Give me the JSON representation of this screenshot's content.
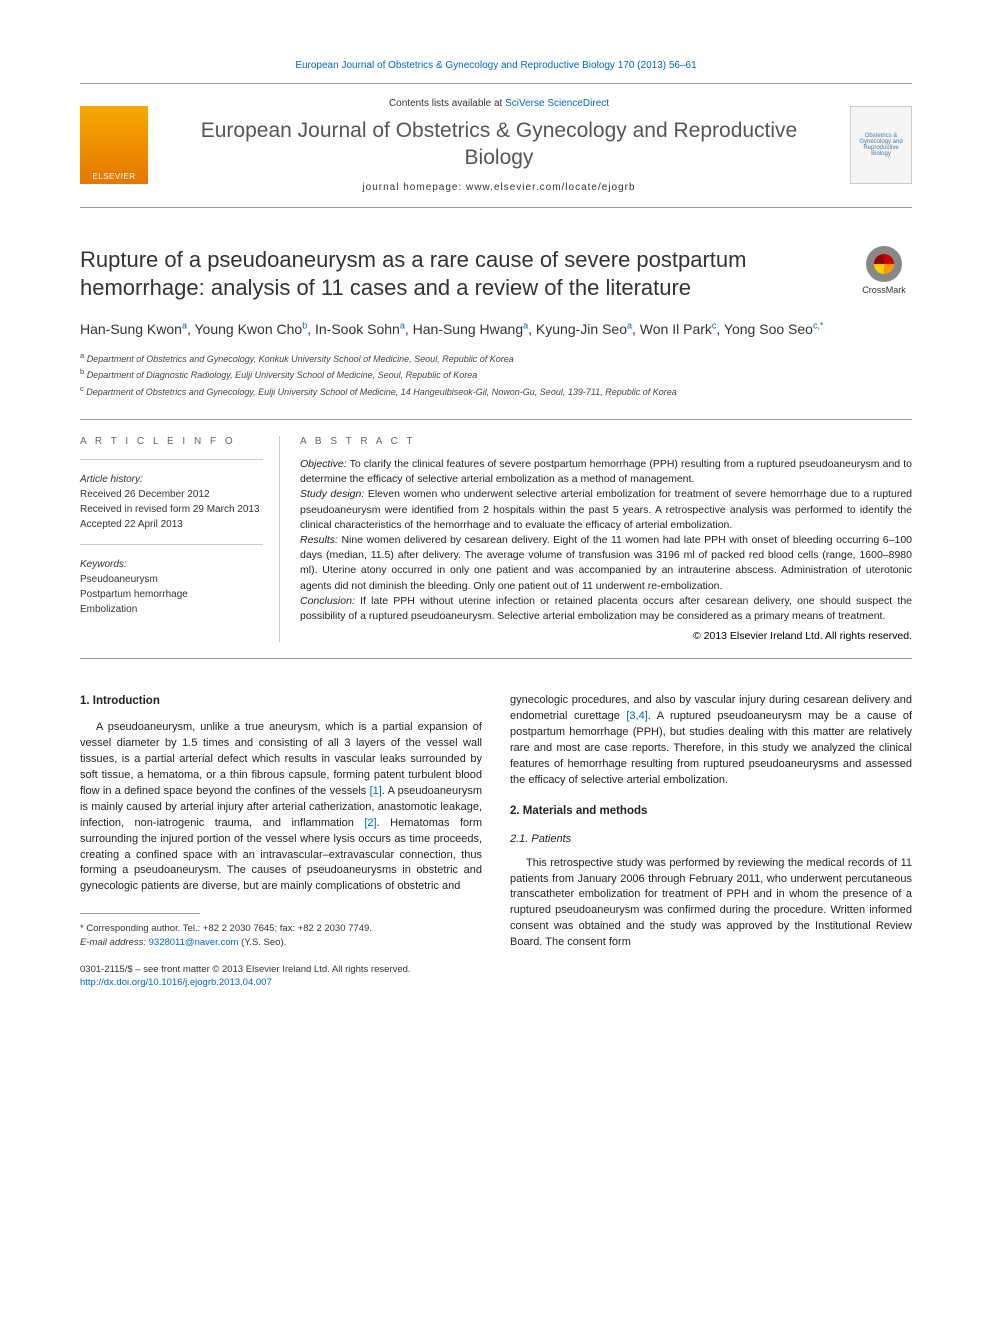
{
  "header": {
    "citation_link": "European Journal of Obstetrics & Gynecology and Reproductive Biology 170 (2013) 56–61",
    "contents_prefix": "Contents lists available at ",
    "contents_link": "SciVerse ScienceDirect",
    "journal_title": "European Journal of Obstetrics & Gynecology and Reproductive Biology",
    "homepage_label": "journal homepage: www.elsevier.com/locate/ejogrb",
    "elsevier": "ELSEVIER",
    "cover_text": "Obstetrics & Gynecology and Reproductive Biology"
  },
  "crossmark": "CrossMark",
  "article": {
    "title": "Rupture of a pseudoaneurysm as a rare cause of severe postpartum hemorrhage: analysis of 11 cases and a review of the literature",
    "authors_html": "Han-Sung Kwon<sup>a</sup>, Young Kwon Cho<sup>b</sup>, In-Sook Sohn<sup>a</sup>, Han-Sung Hwang<sup>a</sup>, Kyung-Jin Seo<sup>a</sup>, Won Il Park<sup>c</sup>, Yong Soo Seo<sup>c,*</sup>",
    "affiliations": {
      "a": "Department of Obstetrics and Gynecology, Konkuk University School of Medicine, Seoul, Republic of Korea",
      "b": "Department of Diagnostic Radiology, Eulji University School of Medicine, Seoul, Republic of Korea",
      "c": "Department of Obstetrics and Gynecology, Eulji University School of Medicine, 14 Hangeulbiseok-Gil, Nowon-Gu, Seoul, 139-711, Republic of Korea"
    }
  },
  "info": {
    "heading": "A R T I C L E   I N F O",
    "history_label": "Article history:",
    "received": "Received 26 December 2012",
    "revised": "Received in revised form 29 March 2013",
    "accepted": "Accepted 22 April 2013",
    "keywords_label": "Keywords:",
    "keywords": [
      "Pseudoaneurysm",
      "Postpartum hemorrhage",
      "Embolization"
    ]
  },
  "abstract": {
    "heading": "A B S T R A C T",
    "objective": "To clarify the clinical features of severe postpartum hemorrhage (PPH) resulting from a ruptured pseudoaneurysm and to determine the efficacy of selective arterial embolization as a method of management.",
    "study_design": "Eleven women who underwent selective arterial embolization for treatment of severe hemorrhage due to a ruptured pseudoaneurysm were identified from 2 hospitals within the past 5 years. A retrospective analysis was performed to identify the clinical characteristics of the hemorrhage and to evaluate the efficacy of arterial embolization.",
    "results": "Nine women delivered by cesarean delivery. Eight of the 11 women had late PPH with onset of bleeding occurring 6–100 days (median, 11.5) after delivery. The average volume of transfusion was 3196 ml of packed red blood cells (range, 1600–8980 ml). Uterine atony occurred in only one patient and was accompanied by an intrauterine abscess. Administration of uterotonic agents did not diminish the bleeding. Only one patient out of 11 underwent re-embolization.",
    "conclusion": "If late PPH without uterine infection or retained placenta occurs after cesarean delivery, one should suspect the possibility of a ruptured pseudoaneurysm. Selective arterial embolization may be considered as a primary means of treatment.",
    "copyright": "© 2013 Elsevier Ireland Ltd. All rights reserved."
  },
  "body": {
    "intro_heading": "1. Introduction",
    "intro_para": "A pseudoaneurysm, unlike a true aneurysm, which is a partial expansion of vessel diameter by 1.5 times and consisting of all 3 layers of the vessel wall tissues, is a partial arterial defect which results in vascular leaks surrounded by soft tissue, a hematoma, or a thin fibrous capsule, forming patent turbulent blood flow in a defined space beyond the confines of the vessels [1]. A pseudoaneurysm is mainly caused by arterial injury after arterial catherization, anastomotic leakage, infection, non-iatrogenic trauma, and inflammation [2]. Hematomas form surrounding the injured portion of the vessel where lysis occurs as time proceeds, creating a confined space with an intravascular–extravascular connection, thus forming a pseudoaneurysm. The causes of pseudoaneurysms in obstetric and gynecologic patients are diverse, but are mainly complications of obstetric and",
    "intro_para2": "gynecologic procedures, and also by vascular injury during cesarean delivery and endometrial curettage [3,4]. A ruptured pseudoaneurysm may be a cause of postpartum hemorrhage (PPH), but studies dealing with this matter are relatively rare and most are case reports. Therefore, in this study we analyzed the clinical features of hemorrhage resulting from ruptured pseudoaneurysms and assessed the efficacy of selective arterial embolization.",
    "methods_heading": "2. Materials and methods",
    "patients_heading": "2.1. Patients",
    "patients_para": "This retrospective study was performed by reviewing the medical records of 11 patients from January 2006 through February 2011, who underwent percutaneous transcatheter embolization for treatment of PPH and in whom the presence of a ruptured pseudoaneurysm was confirmed during the procedure. Written informed consent was obtained and the study was approved by the Institutional Review Board. The consent form"
  },
  "refs": {
    "r1": "[1]",
    "r2": "[2]",
    "r34": "[3,4]"
  },
  "corresponding": {
    "text": "* Corresponding author. Tel.: +82 2 2030 7645; fax: +82 2 2030 7749.",
    "email_label": "E-mail address: ",
    "email": "9328011@naver.com",
    "name": " (Y.S. Seo)."
  },
  "footer": {
    "line1": "0301-2115/$ – see front matter © 2013 Elsevier Ireland Ltd. All rights reserved.",
    "doi": "http://dx.doi.org/10.1016/j.ejogrb.2013.04.007"
  },
  "colors": {
    "link": "#0066cc",
    "text": "#222222",
    "border": "#999999",
    "elsevier_orange": "#e67700"
  }
}
